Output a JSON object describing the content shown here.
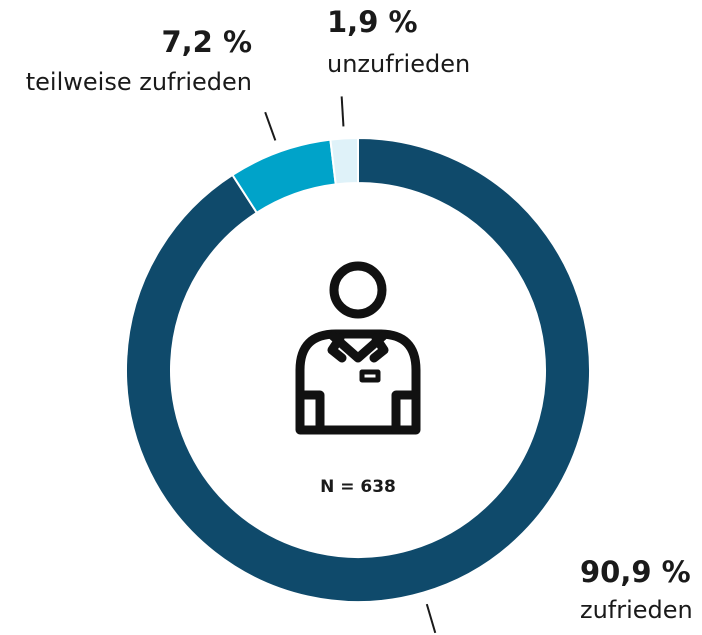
{
  "chart_data": {
    "type": "donut",
    "categories": [
      "zufrieden",
      "teilweise zufrieden",
      "unzufrieden"
    ],
    "values": [
      90.9,
      7.2,
      1.9
    ],
    "value_labels": [
      "90,9 %",
      "7,2 %",
      "1,9 %"
    ],
    "colors": [
      "#0f4a6b",
      "#00a3c9",
      "#dff2f9"
    ],
    "annotation": "N = 638"
  }
}
